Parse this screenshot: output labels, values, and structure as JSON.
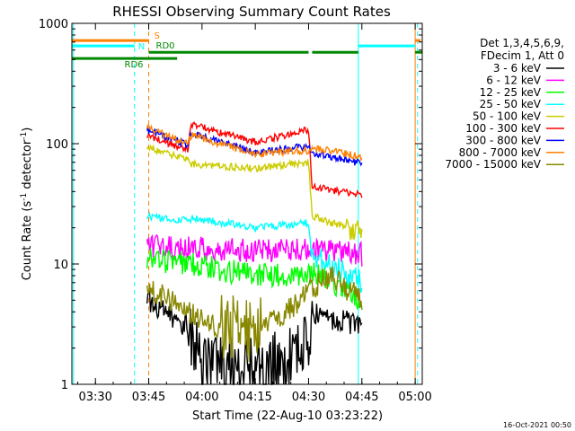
{
  "chart_data": {
    "type": "line",
    "title": "RHESSI Observing Summary Count Rates",
    "xlabel": "Start Time (22-Aug-10 03:23:22)",
    "ylabel_main": "Count Rate (s",
    "ylabel_sup": "-1",
    "ylabel_mid": " detector",
    "ylabel_end": ")",
    "y_log": true,
    "ylim": [
      1,
      1000
    ],
    "xlim": [
      "03:23:22",
      "05:02:00"
    ],
    "x_ticks": [
      "03:30",
      "03:45",
      "04:00",
      "04:15",
      "04:30",
      "04:45",
      "05:00"
    ],
    "y_ticks": [
      "1",
      "10",
      "100",
      "1000"
    ],
    "timestamp": "16-Oct-2021 00:50",
    "legend_header": [
      "Det 1,3,4,5,6,9,",
      "FDecim 1, Att 0"
    ],
    "series": [
      {
        "name": "3 - 6 keV",
        "color": "#000000",
        "points": [
          [
            "03:44:30",
            5
          ],
          [
            "03:56:00",
            3
          ],
          [
            "04:00:00",
            1.5
          ],
          [
            "04:15:00",
            1.3
          ],
          [
            "04:30:00",
            2
          ],
          [
            "04:31:00",
            4
          ],
          [
            "04:45:00",
            3
          ]
        ]
      },
      {
        "name": "6 - 12 keV",
        "color": "#ff00ff",
        "points": [
          [
            "03:44:30",
            14
          ],
          [
            "03:56:00",
            13.5
          ],
          [
            "04:15:00",
            13
          ],
          [
            "04:30:00",
            13
          ],
          [
            "04:45:00",
            12
          ]
        ]
      },
      {
        "name": "12 - 25 keV",
        "color": "#00ff00",
        "points": [
          [
            "03:44:30",
            11
          ],
          [
            "03:56:00",
            10
          ],
          [
            "04:15:00",
            8
          ],
          [
            "04:30:00",
            8
          ],
          [
            "04:31:00",
            9
          ],
          [
            "04:45:00",
            5
          ]
        ]
      },
      {
        "name": "25 - 50 keV",
        "color": "#00ffff",
        "points": [
          [
            "03:44:30",
            25
          ],
          [
            "03:56:00",
            23
          ],
          [
            "03:57:00",
            24
          ],
          [
            "04:15:00",
            20
          ],
          [
            "04:30:00",
            22
          ],
          [
            "04:31:00",
            12
          ],
          [
            "04:45:00",
            7
          ]
        ]
      },
      {
        "name": "50 - 100 keV",
        "color": "#cccc00",
        "points": [
          [
            "03:44:30",
            95
          ],
          [
            "03:56:00",
            72
          ],
          [
            "03:57:00",
            68
          ],
          [
            "04:15:00",
            62
          ],
          [
            "04:30:00",
            70
          ],
          [
            "04:31:00",
            25
          ],
          [
            "04:45:00",
            18
          ]
        ]
      },
      {
        "name": "100 - 300 keV",
        "color": "#ff0000",
        "points": [
          [
            "03:44:30",
            115
          ],
          [
            "03:56:00",
            90
          ],
          [
            "03:57:00",
            145
          ],
          [
            "04:15:00",
            103
          ],
          [
            "04:30:00",
            130
          ],
          [
            "04:31:00",
            44
          ],
          [
            "04:45:00",
            37
          ]
        ]
      },
      {
        "name": "300 - 800 keV",
        "color": "#0000ff",
        "points": [
          [
            "03:44:30",
            130
          ],
          [
            "03:56:00",
            98
          ],
          [
            "03:57:00",
            122
          ],
          [
            "04:15:00",
            85
          ],
          [
            "04:30:00",
            95
          ],
          [
            "04:31:00",
            85
          ],
          [
            "04:45:00",
            68
          ]
        ]
      },
      {
        "name": "800 - 7000 keV",
        "color": "#ff8000",
        "points": [
          [
            "03:44:30",
            135
          ],
          [
            "03:56:00",
            100
          ],
          [
            "03:57:00",
            118
          ],
          [
            "04:15:00",
            82
          ],
          [
            "04:30:00",
            88
          ],
          [
            "04:31:00",
            92
          ],
          [
            "04:45:00",
            78
          ]
        ]
      },
      {
        "name": "7000 - 15000 keV",
        "color": "#888800",
        "points": [
          [
            "03:44:30",
            6.5
          ],
          [
            "03:56:00",
            4
          ],
          [
            "04:05:00",
            3
          ],
          [
            "04:15:00",
            2.8
          ],
          [
            "04:24:00",
            4
          ],
          [
            "04:30:00",
            6
          ],
          [
            "04:36:00",
            8
          ],
          [
            "04:45:00",
            5
          ]
        ]
      }
    ],
    "flags": [
      {
        "label": "S",
        "color": "#ff8000",
        "segments": [
          [
            "03:23:22",
            "03:45:00"
          ],
          [
            "05:00:00",
            "05:01:30"
          ]
        ],
        "level": 720
      },
      {
        "label": "N",
        "color": "#00ffff",
        "segments": [
          [
            "03:23:22",
            "03:41:00"
          ],
          [
            "04:44:00",
            "05:00:00"
          ]
        ],
        "level": 650
      },
      {
        "label": "RD0",
        "color": "#008800",
        "segments": [
          [
            "03:45:00",
            "04:30:00"
          ],
          [
            "04:31:00",
            "04:44:00"
          ],
          [
            "05:00:00",
            "05:02:00"
          ]
        ],
        "level": 575
      },
      {
        "label": "RD6",
        "color": "#008800",
        "segments": [
          [
            "03:23:22",
            "03:45:00"
          ],
          [
            "03:45:00",
            "03:53:00"
          ]
        ],
        "level": 510
      }
    ],
    "vlines": [
      {
        "time": "03:23:50",
        "color": "#00ffff",
        "style": "solid"
      },
      {
        "time": "03:41:00",
        "color": "#00ffff",
        "style": "dashed"
      },
      {
        "time": "03:45:00",
        "color": "#ff8000",
        "style": "dashed"
      },
      {
        "time": "04:44:00",
        "color": "#00ffff",
        "style": "solid"
      },
      {
        "time": "05:00:00",
        "color": "#ff8000",
        "style": "solid"
      },
      {
        "time": "05:00:40",
        "color": "#00ffff",
        "style": "dashed"
      }
    ]
  }
}
